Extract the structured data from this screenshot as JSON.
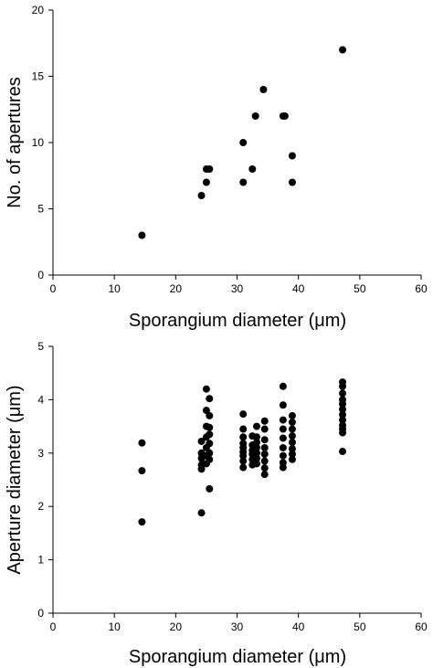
{
  "chart_data": [
    {
      "type": "scatter",
      "xlabel": "Sporangium diameter (μm)",
      "ylabel": "No. of apertures",
      "xlim": [
        0,
        60
      ],
      "ylim": [
        0,
        20
      ],
      "xticks": [
        "0",
        "10",
        "20",
        "30",
        "40",
        "50",
        "60"
      ],
      "yticks": [
        "0",
        "5",
        "10",
        "15",
        "20"
      ],
      "grid": false,
      "marker_color": "#000000",
      "series": [
        {
          "points": [
            [
              14.5,
              3
            ],
            [
              24.2,
              6
            ],
            [
              25.0,
              7
            ],
            [
              25.0,
              8
            ],
            [
              25.5,
              8
            ],
            [
              31.0,
              10
            ],
            [
              31.0,
              7
            ],
            [
              32.5,
              8
            ],
            [
              33.0,
              12
            ],
            [
              34.3,
              14
            ],
            [
              37.5,
              12
            ],
            [
              37.8,
              12
            ],
            [
              39.0,
              9
            ],
            [
              39.0,
              7
            ],
            [
              47.2,
              17
            ]
          ]
        }
      ]
    },
    {
      "type": "scatter",
      "xlabel": "Sporangium diameter (μm)",
      "ylabel": "Aperture diameter (μm)",
      "xlim": [
        0,
        60
      ],
      "ylim": [
        0,
        5
      ],
      "xticks": [
        "0",
        "10",
        "20",
        "30",
        "40",
        "50",
        "60"
      ],
      "yticks": [
        "0",
        "1",
        "2",
        "3",
        "4",
        "5"
      ],
      "grid": false,
      "marker_color": "#000000",
      "series": [
        {
          "points": [
            [
              14.5,
              3.19
            ],
            [
              14.5,
              2.67
            ],
            [
              14.5,
              1.71
            ],
            [
              24.2,
              3.22
            ],
            [
              24.2,
              3.0
            ],
            [
              24.2,
              2.9
            ],
            [
              24.2,
              2.78
            ],
            [
              24.2,
              2.7
            ],
            [
              24.2,
              1.88
            ],
            [
              25.0,
              4.2
            ],
            [
              25.0,
              3.8
            ],
            [
              25.0,
              3.5
            ],
            [
              25.0,
              3.3
            ],
            [
              25.0,
              3.1
            ],
            [
              25.0,
              2.95
            ],
            [
              25.0,
              2.8
            ],
            [
              25.5,
              4.02
            ],
            [
              25.5,
              3.7
            ],
            [
              25.5,
              3.48
            ],
            [
              25.5,
              3.35
            ],
            [
              25.5,
              3.18
            ],
            [
              25.5,
              3.0
            ],
            [
              25.5,
              2.88
            ],
            [
              25.5,
              2.33
            ],
            [
              31.0,
              3.73
            ],
            [
              31.0,
              3.45
            ],
            [
              31.0,
              3.3
            ],
            [
              31.0,
              3.18
            ],
            [
              31.0,
              3.1
            ],
            [
              31.0,
              3.02
            ],
            [
              31.0,
              2.95
            ],
            [
              31.0,
              2.85
            ],
            [
              31.0,
              2.73
            ],
            [
              32.5,
              3.32
            ],
            [
              32.5,
              3.15
            ],
            [
              32.5,
              3.05
            ],
            [
              32.5,
              2.98
            ],
            [
              32.5,
              2.88
            ],
            [
              32.5,
              2.78
            ],
            [
              33.2,
              3.5
            ],
            [
              33.2,
              3.3
            ],
            [
              33.2,
              3.2
            ],
            [
              33.2,
              3.1
            ],
            [
              33.2,
              3.0
            ],
            [
              33.2,
              2.9
            ],
            [
              33.2,
              2.8
            ],
            [
              34.5,
              3.6
            ],
            [
              34.5,
              3.45
            ],
            [
              34.5,
              3.25
            ],
            [
              34.5,
              3.1
            ],
            [
              34.5,
              2.98
            ],
            [
              34.5,
              2.85
            ],
            [
              34.5,
              2.72
            ],
            [
              34.5,
              2.6
            ],
            [
              37.5,
              4.25
            ],
            [
              37.5,
              3.9
            ],
            [
              37.5,
              3.62
            ],
            [
              37.5,
              3.45
            ],
            [
              37.5,
              3.28
            ],
            [
              37.5,
              3.1
            ],
            [
              37.5,
              2.95
            ],
            [
              37.5,
              2.82
            ],
            [
              37.5,
              2.73
            ],
            [
              39.0,
              3.7
            ],
            [
              39.0,
              3.58
            ],
            [
              39.0,
              3.45
            ],
            [
              39.0,
              3.32
            ],
            [
              39.0,
              3.2
            ],
            [
              39.0,
              3.08
            ],
            [
              39.0,
              2.98
            ],
            [
              39.0,
              2.88
            ],
            [
              47.2,
              4.33
            ],
            [
              47.2,
              4.25
            ],
            [
              47.2,
              4.12
            ],
            [
              47.2,
              4.0
            ],
            [
              47.2,
              3.92
            ],
            [
              47.2,
              3.82
            ],
            [
              47.2,
              3.72
            ],
            [
              47.2,
              3.62
            ],
            [
              47.2,
              3.52
            ],
            [
              47.2,
              3.45
            ],
            [
              47.2,
              3.38
            ],
            [
              47.2,
              3.03
            ]
          ]
        }
      ]
    }
  ]
}
